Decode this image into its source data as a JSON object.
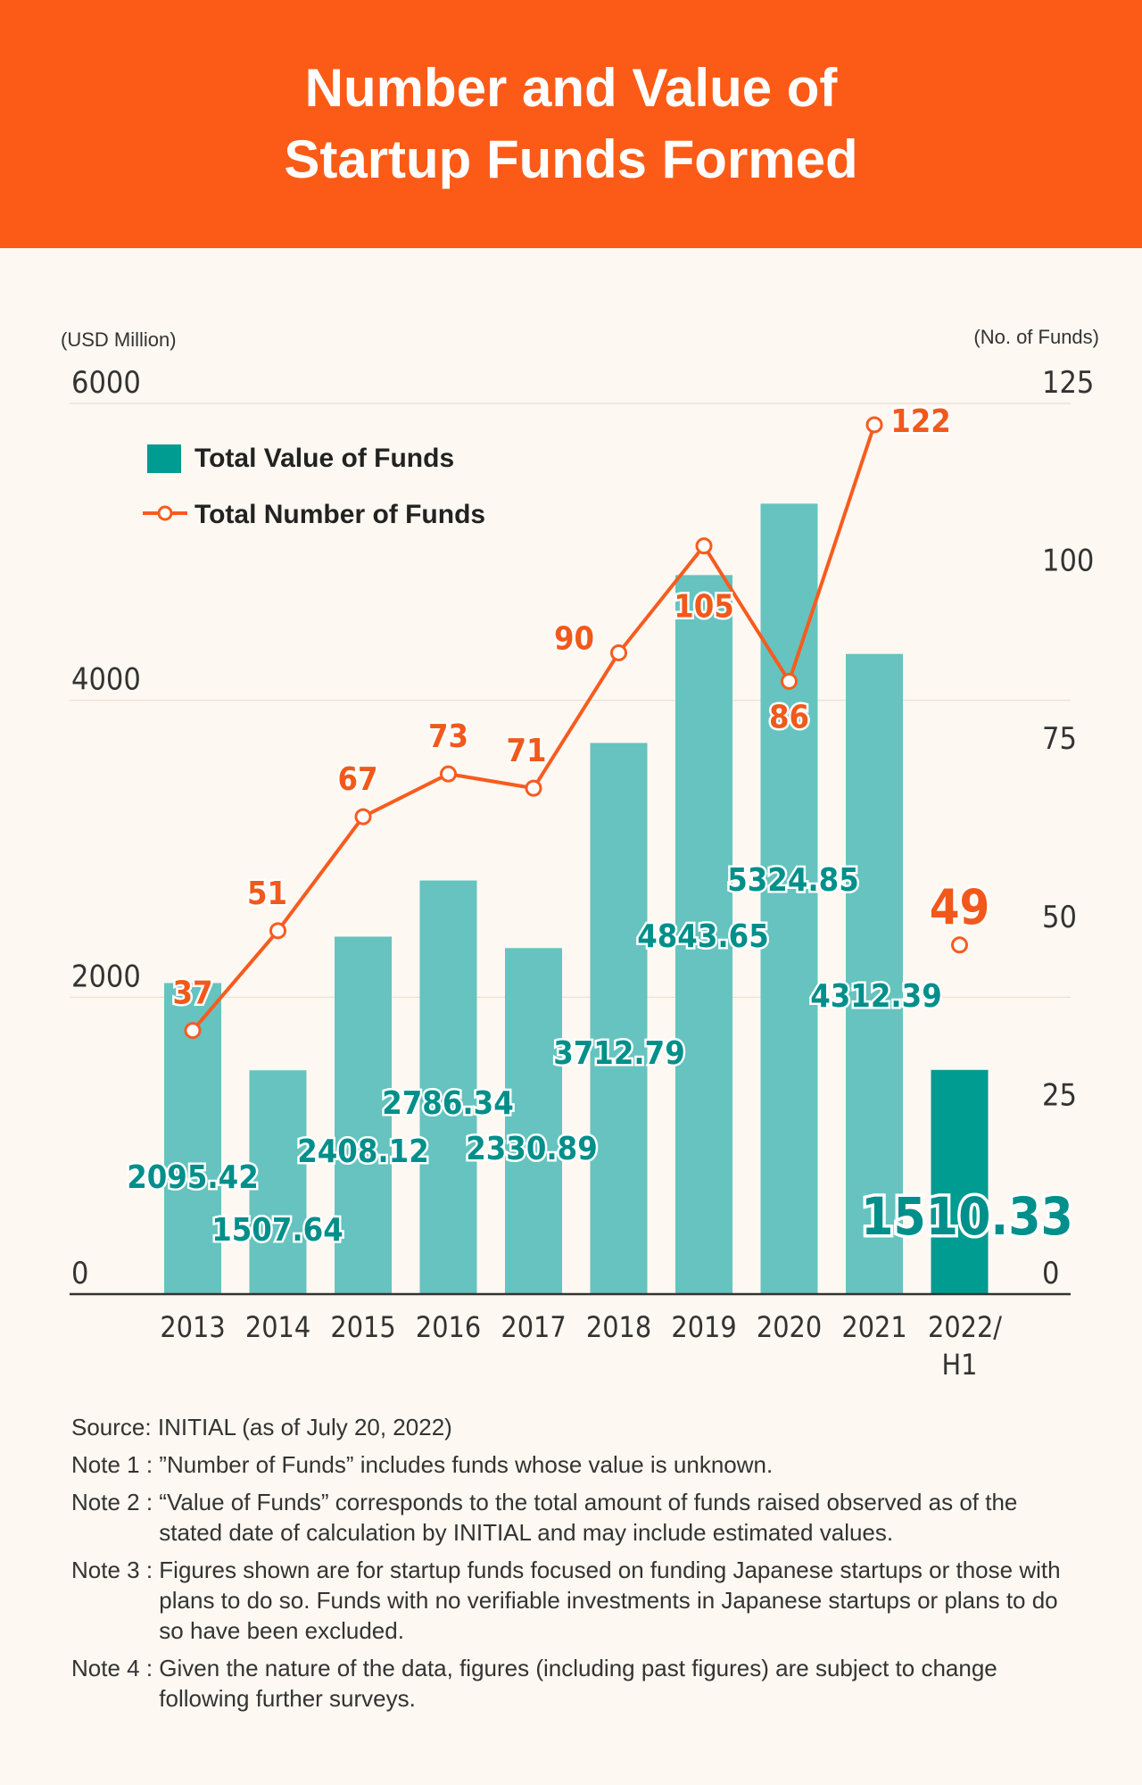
{
  "header": {
    "title_line1": "Number and Value of",
    "title_line2": "Startup Funds Formed"
  },
  "colors": {
    "header_bg": "#fb5b17",
    "bar": "#66c3bf",
    "bar_highlight": "#009b91",
    "line": "#f65c1f",
    "value_label": "#008f8a",
    "count_label": "#f1591b",
    "background": "#fdf8f1"
  },
  "chart_data": {
    "type": "bar",
    "categories": [
      "2013",
      "2014",
      "2015",
      "2016",
      "2017",
      "2018",
      "2019",
      "2020",
      "2021",
      "2022/H1"
    ],
    "category_lines": [
      [
        "2013"
      ],
      [
        "2014"
      ],
      [
        "2015"
      ],
      [
        "2016"
      ],
      [
        "2017"
      ],
      [
        "2018"
      ],
      [
        "2019"
      ],
      [
        "2020"
      ],
      [
        "2021"
      ],
      [
        "2022/",
        "H1"
      ]
    ],
    "series": [
      {
        "name": "Total Value of Funds",
        "kind": "bar",
        "axis": "left",
        "values": [
          2095.42,
          1507.64,
          2408.12,
          2786.34,
          2330.89,
          3712.79,
          4843.65,
          5324.85,
          4312.39,
          1510.33
        ],
        "labels": [
          "2095.42",
          "1507.64",
          "2408.12",
          "2786.34",
          "2330.89",
          "3712.79",
          "4843.65",
          "5324.85",
          "4312.39",
          "1510.33"
        ]
      },
      {
        "name": "Total Number of Funds",
        "kind": "line",
        "axis": "right",
        "values": [
          37,
          51,
          67,
          73,
          71,
          90,
          105,
          86,
          122,
          49
        ],
        "labels": [
          "37",
          "51",
          "67",
          "73",
          "71",
          "90",
          "105",
          "86",
          "122",
          "49"
        ]
      }
    ],
    "left_axis": {
      "label": "(USD Million)",
      "range": [
        0,
        6000
      ],
      "ticks": [
        "0",
        "2000",
        "4000",
        "6000"
      ]
    },
    "right_axis": {
      "label": "(No. of Funds)",
      "range": [
        0,
        125
      ],
      "ticks": [
        "0",
        "25",
        "50",
        "75",
        "100",
        "125"
      ]
    },
    "legend": {
      "placement": "top-left",
      "entries": [
        "Total Value of Funds",
        "Total Number of Funds"
      ]
    },
    "grid": true,
    "highlight_last": true
  },
  "notes": {
    "source_label": "Source:",
    "source_text": "INITIAL (as of July 20, 2022)",
    "items": [
      {
        "label": "Note 1 :",
        "text": "”Number of Funds” includes funds whose value is unknown."
      },
      {
        "label": "Note 2 :",
        "text": "“Value of Funds” corresponds to the total amount of funds raised observed as of the stated date of calculation by INITIAL and may include estimated values."
      },
      {
        "label": "Note 3 :",
        "text": "Figures shown are for startup funds focused on funding Japanese startups or those with plans to do so.  Funds with no verifiable investments in Japanese startups or plans to do so have been excluded."
      },
      {
        "label": "Note 4 :",
        "text": "Given the nature of the data, figures (including past figures) are subject to change following further surveys."
      }
    ]
  }
}
